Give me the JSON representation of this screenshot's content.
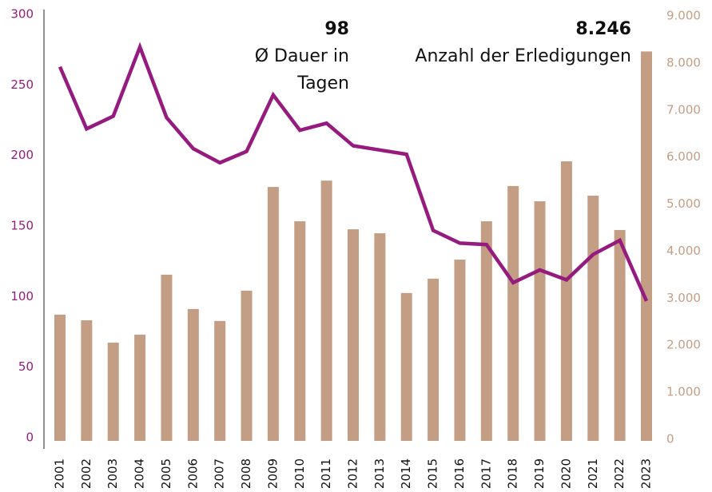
{
  "chart_data": {
    "type": "combo",
    "categories": [
      "2001",
      "2002",
      "2003",
      "2004",
      "2005",
      "2006",
      "2007",
      "2008",
      "2009",
      "2010",
      "2011",
      "2012",
      "2013",
      "2014",
      "2015",
      "2016",
      "2017",
      "2018",
      "2019",
      "2020",
      "2021",
      "2022",
      "2023"
    ],
    "series": [
      {
        "name": "Anzahl der Erledigungen",
        "label": "8.246",
        "type": "bar",
        "axis": "y2",
        "color": "#c49e84",
        "values": [
          2650,
          2530,
          2055,
          2225,
          3500,
          2770,
          2515,
          3160,
          5365,
          4635,
          5500,
          4465,
          4380,
          3110,
          3415,
          3820,
          4635,
          5385,
          5060,
          5910,
          5180,
          4450,
          8246
        ]
      },
      {
        "name": "Ø Dauer in Tagen",
        "label": "98",
        "type": "line",
        "color": "#951b7f",
        "values": [
          264,
          220,
          229,
          278,
          228,
          206,
          196,
          204,
          244,
          219,
          224,
          208,
          205,
          202,
          148,
          139,
          138,
          111,
          120,
          113,
          131,
          141,
          98
        ]
      }
    ],
    "ylim": [
      0,
      300
    ],
    "yticks": [
      0,
      50,
      100,
      150,
      200,
      250,
      300
    ],
    "y2lim": [
      0,
      9000
    ],
    "y2ticks": [
      0,
      {
        "value": 1000,
        "label": "1.000"
      },
      {
        "value": 2000,
        "label": "2.000"
      },
      {
        "value": 3000,
        "label": "3.000"
      },
      {
        "value": 4000,
        "label": "4.000"
      },
      {
        "value": 5000,
        "label": "5.000"
      },
      {
        "value": 6000,
        "label": "6.000"
      },
      {
        "value": 7000,
        "label": "7.000"
      },
      {
        "value": 8000,
        "label": "8.000"
      },
      {
        "value": 9000,
        "label": "9.000"
      }
    ],
    "grid": false
  }
}
